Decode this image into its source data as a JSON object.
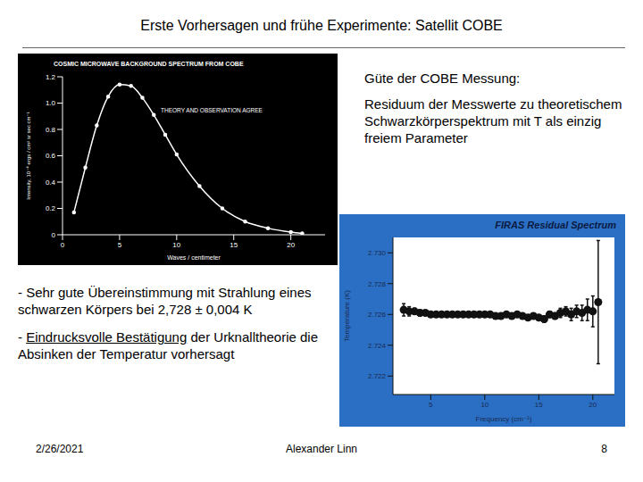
{
  "slide": {
    "title": "Erste Vorhersagen und frühe Experimente: Satellit COBE",
    "side_text": [
      "Güte der COBE Messung:",
      "Residuum der Messwerte zu theoretischem Schwarzkörperspektrum mit T als einzig freiem Parameter"
    ],
    "bullets": [
      [
        "- Sehr gute Übereinstimmung mit Strahlung eines schwarzen Körpers bei 2,728 ± 0,004 K"
      ],
      [
        "- ",
        "Eindrucksvolle Bestätigung",
        " der Urknalltheorie die Absinken der Temperatur vorhersagt"
      ]
    ],
    "footer": {
      "date": "2/26/2021",
      "author": "Alexander Linn",
      "page": "8"
    }
  },
  "chart_data": [
    {
      "type": "line",
      "title": "COSMIC MICROWAVE BACKGROUND SPECTRUM FROM COBE",
      "annotation": "THEORY AND OBSERVATION AGREE",
      "xlabel": "Waves / centimeter",
      "ylabel": "Intensity, 10⁻⁴ ergs / cm² sr sec cm⁻¹",
      "x": [
        1,
        2,
        3,
        4,
        5,
        6,
        7,
        8,
        9,
        10,
        12,
        14,
        16,
        18,
        20,
        21
      ],
      "values": [
        0.17,
        0.51,
        0.83,
        1.05,
        1.14,
        1.13,
        1.04,
        0.91,
        0.76,
        0.61,
        0.37,
        0.2,
        0.1,
        0.05,
        0.02,
        0.01
      ],
      "color": "#ffffff",
      "marker": "circle",
      "xlim": [
        0,
        23
      ],
      "xticks": [
        0,
        5,
        10,
        15,
        20
      ],
      "ylim": [
        0,
        1.2
      ],
      "yticks": [
        0,
        0.2,
        0.4,
        0.6,
        0.8,
        {
          "value": 1,
          "label": "1.0"
        },
        1.2
      ],
      "grid": false
    },
    {
      "type": "scatter",
      "title": "FIRAS Residual Spectrum",
      "xlabel": "Frequency (cm⁻¹)",
      "ylabel": "Temperature (K)",
      "x": [
        2.5,
        3,
        3.5,
        4,
        4.5,
        5,
        5.5,
        6,
        6.5,
        7,
        7.5,
        8,
        8.5,
        9,
        9.5,
        10,
        10.5,
        11,
        11.5,
        12,
        12.5,
        13,
        13.5,
        14,
        14.5,
        15,
        15.5,
        16,
        16.5,
        17,
        17.5,
        18,
        18.5,
        19,
        19.5,
        20,
        20.5
      ],
      "values": [
        2.7263,
        2.7262,
        2.7262,
        2.7261,
        2.7261,
        2.726,
        2.726,
        2.726,
        2.726,
        2.726,
        2.726,
        2.726,
        2.726,
        2.726,
        2.726,
        2.726,
        2.726,
        2.7259,
        2.7259,
        2.726,
        2.7259,
        2.726,
        2.7259,
        2.7258,
        2.7259,
        2.7258,
        2.7257,
        2.726,
        2.7259,
        2.7261,
        2.7262,
        2.726,
        2.7262,
        2.7261,
        2.7263,
        2.7262,
        2.7268
      ],
      "errors": [
        0.0004,
        0.0003,
        0.0002,
        0.0002,
        0.0001,
        0.0001,
        0.0001,
        0.0001,
        0.0001,
        0.0001,
        0.0001,
        0.0001,
        0.0001,
        0.0001,
        0.0001,
        0.0001,
        0.0001,
        0.0001,
        0.0001,
        0.0001,
        0.0001,
        0.0001,
        0.0001,
        0.0001,
        0.0001,
        0.0001,
        0.0002,
        0.0002,
        0.0002,
        0.0003,
        0.0003,
        0.0004,
        0.0004,
        0.0005,
        0.0007,
        0.001,
        0.004
      ],
      "color": "#111111",
      "marker": "circle",
      "xlim": [
        1.5,
        22
      ],
      "xticks": [
        5,
        10,
        15,
        20
      ],
      "ylim": [
        2.7208,
        2.731
      ],
      "yticks": [
        2.722,
        2.724,
        2.726,
        2.728,
        {
          "value": 2.73,
          "label": "2.730"
        }
      ],
      "grid": false
    }
  ]
}
